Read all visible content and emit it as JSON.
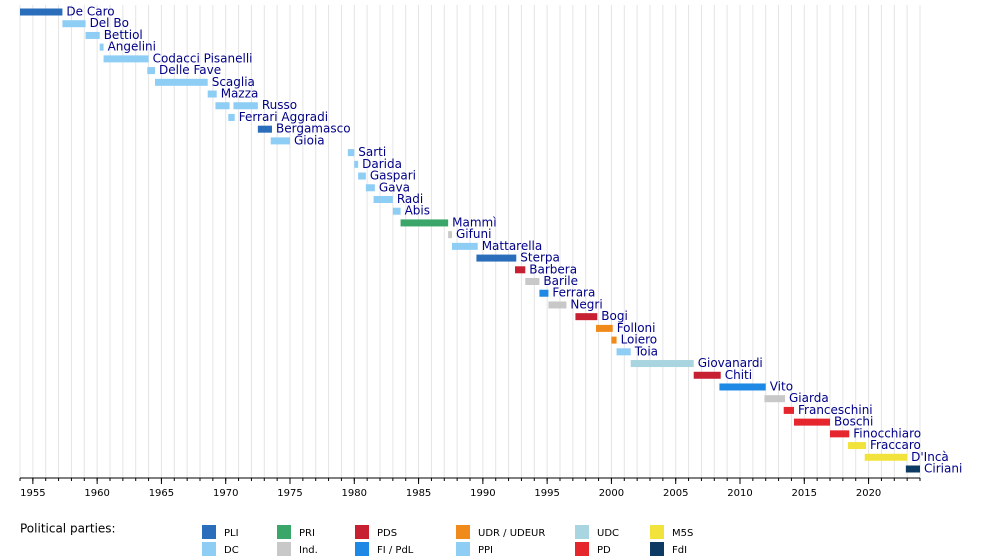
{
  "chart_data": {
    "type": "timeline",
    "xlim": [
      1954,
      2024
    ],
    "xticks": [
      1955,
      1960,
      1965,
      1970,
      1975,
      1980,
      1985,
      1990,
      1995,
      2000,
      2005,
      2010,
      2015,
      2020
    ],
    "minor_xticks": [
      1954,
      1955,
      1956,
      1957,
      1958,
      1959,
      1960,
      1961,
      1962,
      1963,
      1964,
      1965,
      1966,
      1967,
      1968,
      1969,
      1970,
      1971,
      1972,
      1973,
      1974,
      1975,
      1976,
      1977,
      1978,
      1979,
      1980,
      1981,
      1982,
      1983,
      1984,
      1985,
      1986,
      1987,
      1988,
      1989,
      1990,
      1991,
      1992,
      1993,
      1994,
      1995,
      1996,
      1997,
      1998,
      1999,
      2000,
      2001,
      2002,
      2003,
      2004,
      2005,
      2006,
      2007,
      2008,
      2009,
      2010,
      2011,
      2012,
      2013,
      2014,
      2015,
      2016,
      2017,
      2018,
      2019,
      2020,
      2021,
      2022,
      2023,
      2024
    ],
    "grid": true,
    "legend_title": "Political parties:",
    "parties": [
      {
        "name": "PLI",
        "color": "#2a6ebb"
      },
      {
        "name": "DC",
        "color": "#8ecdf4"
      },
      {
        "name": "PRI",
        "color": "#3aa66a"
      },
      {
        "name": "Ind.",
        "color": "#c8c8c8"
      },
      {
        "name": "PDS",
        "color": "#c62032"
      },
      {
        "name": "FI / PdL",
        "color": "#1e88e5"
      },
      {
        "name": "UDR / UDEUR",
        "color": "#f08a1a"
      },
      {
        "name": "PPI",
        "color": "#8ecdf4"
      },
      {
        "name": "UDC",
        "color": "#a8d5df"
      },
      {
        "name": "PD",
        "color": "#e5262d"
      },
      {
        "name": "M5S",
        "color": "#f2e33c"
      },
      {
        "name": "FdI",
        "color": "#0d3a63"
      }
    ],
    "rows": [
      {
        "name": "De Caro",
        "party": "PLI",
        "bars": [
          {
            "start": 1954.0,
            "end": 1957.3
          }
        ]
      },
      {
        "name": "Del Bo",
        "party": "DC",
        "bars": [
          {
            "start": 1957.3,
            "end": 1959.1
          }
        ]
      },
      {
        "name": "Bettiol",
        "party": "DC",
        "bars": [
          {
            "start": 1959.1,
            "end": 1960.2
          }
        ]
      },
      {
        "name": "Angelini",
        "party": "DC",
        "bars": [
          {
            "start": 1960.2,
            "end": 1960.5
          }
        ]
      },
      {
        "name": "Codacci Pisanelli",
        "party": "DC",
        "bars": [
          {
            "start": 1960.5,
            "end": 1964.0
          }
        ]
      },
      {
        "name": "Delle Fave",
        "party": "DC",
        "bars": [
          {
            "start": 1963.9,
            "end": 1964.5
          }
        ]
      },
      {
        "name": "Scaglia",
        "party": "DC",
        "bars": [
          {
            "start": 1964.5,
            "end": 1968.6
          }
        ]
      },
      {
        "name": "Mazza",
        "party": "DC",
        "bars": [
          {
            "start": 1968.6,
            "end": 1969.3
          }
        ]
      },
      {
        "name": "Russo",
        "party": "DC",
        "bars": [
          {
            "start": 1969.2,
            "end": 1970.3
          },
          {
            "start": 1970.6,
            "end": 1972.5
          }
        ]
      },
      {
        "name": "Ferrari Aggradi",
        "party": "DC",
        "bars": [
          {
            "start": 1970.2,
            "end": 1970.7
          }
        ]
      },
      {
        "name": "Bergamasco",
        "party": "PLI",
        "bars": [
          {
            "start": 1972.5,
            "end": 1973.6
          }
        ]
      },
      {
        "name": "Gioia",
        "party": "DC",
        "bars": [
          {
            "start": 1973.5,
            "end": 1975.0
          }
        ]
      },
      {
        "name": "Sarti",
        "party": "DC",
        "bars": [
          {
            "start": 1979.5,
            "end": 1980.0
          }
        ]
      },
      {
        "name": "Darida",
        "party": "DC",
        "bars": [
          {
            "start": 1980.0,
            "end": 1980.3
          }
        ]
      },
      {
        "name": "Gaspari",
        "party": "DC",
        "bars": [
          {
            "start": 1980.3,
            "end": 1980.9
          }
        ]
      },
      {
        "name": "Gava",
        "party": "DC",
        "bars": [
          {
            "start": 1980.9,
            "end": 1981.6
          }
        ]
      },
      {
        "name": "Radi",
        "party": "DC",
        "bars": [
          {
            "start": 1981.5,
            "end": 1983.0
          }
        ]
      },
      {
        "name": "Abis",
        "party": "DC",
        "bars": [
          {
            "start": 1983.0,
            "end": 1983.6
          }
        ]
      },
      {
        "name": "Mammì",
        "party": "PRI",
        "bars": [
          {
            "start": 1983.6,
            "end": 1987.3
          }
        ]
      },
      {
        "name": "Gifuni",
        "party": "Ind.",
        "bars": [
          {
            "start": 1987.3,
            "end": 1987.6
          }
        ]
      },
      {
        "name": "Mattarella",
        "party": "DC",
        "bars": [
          {
            "start": 1987.6,
            "end": 1989.6
          }
        ]
      },
      {
        "name": "Sterpa",
        "party": "PLI",
        "bars": [
          {
            "start": 1989.5,
            "end": 1992.6
          }
        ]
      },
      {
        "name": "Barbera",
        "party": "PDS",
        "bars": [
          {
            "start": 1992.5,
            "end": 1993.3
          }
        ]
      },
      {
        "name": "Barile",
        "party": "Ind.",
        "bars": [
          {
            "start": 1993.3,
            "end": 1994.4
          }
        ]
      },
      {
        "name": "Ferrara",
        "party": "FI / PdL",
        "bars": [
          {
            "start": 1994.4,
            "end": 1995.1
          }
        ]
      },
      {
        "name": "Negri",
        "party": "Ind.",
        "bars": [
          {
            "start": 1995.1,
            "end": 1996.5
          }
        ]
      },
      {
        "name": "Bogi",
        "party": "PDS",
        "bars": [
          {
            "start": 1997.2,
            "end": 1998.9
          }
        ]
      },
      {
        "name": "Folloni",
        "party": "UDR / UDEUR",
        "bars": [
          {
            "start": 1998.8,
            "end": 2000.1
          }
        ]
      },
      {
        "name": "Loiero",
        "party": "UDR / UDEUR",
        "bars": [
          {
            "start": 2000.0,
            "end": 2000.4
          }
        ]
      },
      {
        "name": "Toia",
        "party": "PPI",
        "bars": [
          {
            "start": 2000.4,
            "end": 2001.5
          }
        ]
      },
      {
        "name": "Giovanardi",
        "party": "UDC",
        "bars": [
          {
            "start": 2001.5,
            "end": 2006.4
          }
        ]
      },
      {
        "name": "Chiti",
        "party": "PDS",
        "bars": [
          {
            "start": 2006.4,
            "end": 2008.5
          }
        ]
      },
      {
        "name": "Vito",
        "party": "FI / PdL",
        "bars": [
          {
            "start": 2008.4,
            "end": 2012.0
          }
        ]
      },
      {
        "name": "Giarda",
        "party": "Ind.",
        "bars": [
          {
            "start": 2011.9,
            "end": 2013.5
          }
        ]
      },
      {
        "name": "Franceschini",
        "party": "PD",
        "bars": [
          {
            "start": 2013.4,
            "end": 2014.2
          }
        ]
      },
      {
        "name": "Boschi",
        "party": "PD",
        "bars": [
          {
            "start": 2014.2,
            "end": 2017.0
          }
        ]
      },
      {
        "name": "Finocchiaro",
        "party": "PD",
        "bars": [
          {
            "start": 2017.0,
            "end": 2018.5
          }
        ]
      },
      {
        "name": "Fraccaro",
        "party": "M5S",
        "bars": [
          {
            "start": 2018.4,
            "end": 2019.8
          }
        ]
      },
      {
        "name": "D'Incà",
        "party": "M5S",
        "bars": [
          {
            "start": 2019.7,
            "end": 2023.0
          }
        ]
      },
      {
        "name": "Ciriani",
        "party": "FdI",
        "bars": [
          {
            "start": 2022.9,
            "end": 2024
          }
        ]
      }
    ]
  }
}
